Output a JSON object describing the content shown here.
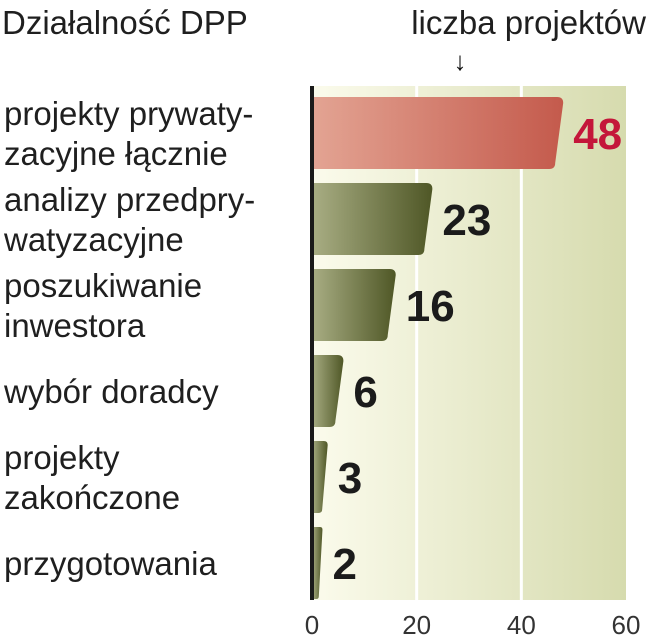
{
  "header": {
    "title": "Działalność DPP",
    "measure_label": "liczba projektów",
    "arrow_glyph": "↓"
  },
  "chart_data": {
    "type": "bar",
    "orientation": "horizontal",
    "categories": [
      [
        "projekty prywaty-",
        "zacyjne łącznie"
      ],
      [
        "analizy przedpry-",
        "watyzacyjne"
      ],
      [
        "poszukiwanie",
        "inwestora"
      ],
      [
        "wybór doradcy"
      ],
      [
        "projekty",
        "zakończone"
      ],
      [
        "przygotowania"
      ]
    ],
    "values": [
      48,
      23,
      16,
      6,
      3,
      2
    ],
    "value_labels": [
      "48",
      "23",
      "16",
      "6",
      "3",
      "2"
    ],
    "highlight_index": 0,
    "xlim": [
      0,
      60
    ],
    "xticks": [
      0,
      20,
      40,
      60
    ],
    "xtick_labels": [
      "0",
      "20",
      "40",
      "60"
    ],
    "grid": true,
    "colors": {
      "highlight_light": "#e3a493",
      "highlight_dark": "#c45a4c",
      "highlight_text": "#c4163a",
      "bar_light": "#a9ae84",
      "bar_dark": "#4f5726",
      "background_light": "#fbfbec",
      "background_dark": "#d6dbae",
      "axis": "#1a1a1a",
      "grid": "#ffffff"
    }
  }
}
